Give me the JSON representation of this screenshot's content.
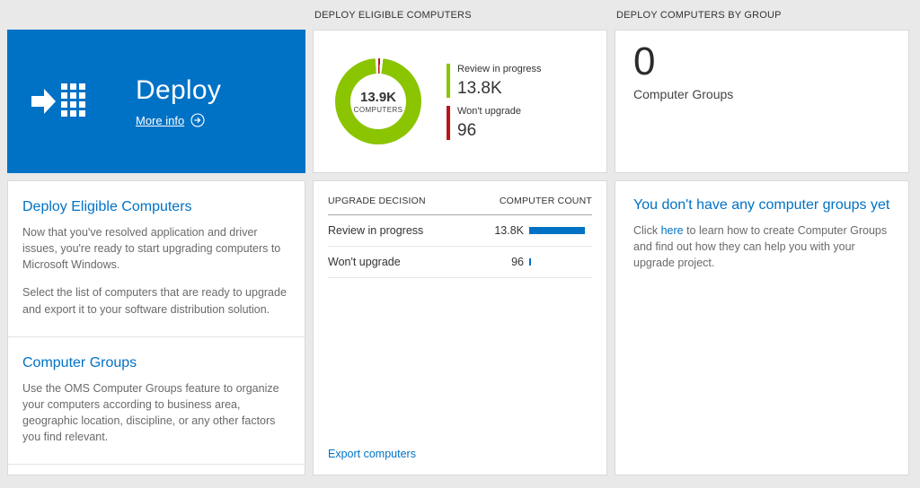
{
  "headers": {
    "middle": "DEPLOY ELIGIBLE COMPUTERS",
    "right": "DEPLOY COMPUTERS BY GROUP"
  },
  "left": {
    "tile": {
      "title": "Deploy",
      "more_info_label": "More info"
    },
    "sections": [
      {
        "heading": "Deploy Eligible Computers",
        "para1": "Now that you've resolved application and driver issues, you're ready to start upgrading computers to Microsoft Windows.",
        "para2": "Select the list of computers that are ready to upgrade and export it to your software distribution solution."
      },
      {
        "heading": "Computer Groups",
        "para1": "Use the OMS Computer Groups feature to organize your computers according to business area, geographic location, discipline, or any other factors you find relevant."
      }
    ]
  },
  "middle": {
    "donut": {
      "center_value": "13.9K",
      "center_label": "COMPUTERS"
    },
    "legend": [
      {
        "label": "Review in progress",
        "value": "13.8K",
        "color": "#8bc400"
      },
      {
        "label": "Won't upgrade",
        "value": "96",
        "color": "#ba141a"
      }
    ],
    "table": {
      "col1": "UPGRADE DECISION",
      "col2": "COMPUTER COUNT",
      "bar_color": "#0072c6",
      "rows": [
        {
          "label": "Review in progress",
          "display": "13.8K",
          "value": 13800
        },
        {
          "label": "Won't upgrade",
          "display": "96",
          "value": 96
        }
      ]
    },
    "export_link": "Export computers"
  },
  "right": {
    "count": "0",
    "count_label": "Computer Groups",
    "empty_heading": "You don't have any computer groups yet",
    "empty_text_before": "Click ",
    "empty_link": "here",
    "empty_text_after": " to learn how to create Computer Groups and find out how they can help you with your upgrade project."
  },
  "chart_data": {
    "type": "pie",
    "title": "DEPLOY ELIGIBLE COMPUTERS",
    "center_value": "13.9K",
    "center_label": "COMPUTERS",
    "legend_position": "right",
    "slices": [
      {
        "label": "Review in progress",
        "value": 13800,
        "display": "13.8K",
        "color": "#8bc400"
      },
      {
        "label": "Won't upgrade",
        "value": 96,
        "display": "96",
        "color": "#ba141a"
      }
    ]
  },
  "colors": {
    "accent_blue": "#0072c6",
    "tile_blue": "#0072c6",
    "green": "#8bc400",
    "red": "#ba141a",
    "background": "#e9e9e9"
  }
}
